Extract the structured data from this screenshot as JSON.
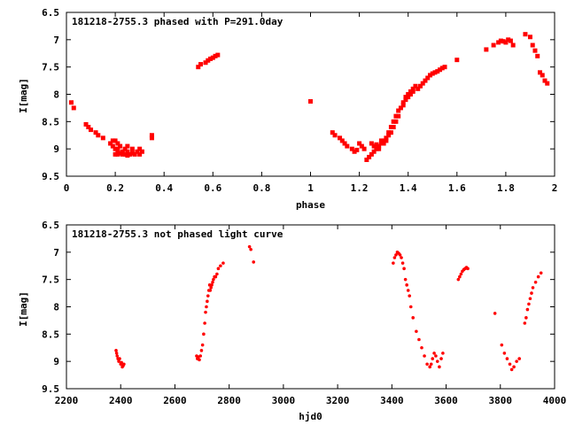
{
  "chart_data": [
    {
      "type": "scatter",
      "title": "181218-2755.3 phased with P=291.0day",
      "xlabel": "phase",
      "ylabel": "I[mag]",
      "xlim": [
        0,
        2
      ],
      "ylim": [
        9.5,
        6.5
      ],
      "y_inverted": true,
      "xticks": [
        "0",
        "0.2",
        "0.4",
        "0.6",
        "0.8",
        "1",
        "1.2",
        "1.4",
        "1.6",
        "1.8",
        "2"
      ],
      "yticks": [
        "6.5",
        "7",
        "7.5",
        "8",
        "8.5",
        "9",
        "9.5"
      ],
      "marker": "filled-square",
      "color": "#ff0000",
      "grid": false,
      "x": [
        0.02,
        0.03,
        0.08,
        0.09,
        0.1,
        0.12,
        0.13,
        0.15,
        0.18,
        0.19,
        0.19,
        0.2,
        0.2,
        0.2,
        0.21,
        0.21,
        0.21,
        0.21,
        0.22,
        0.22,
        0.23,
        0.23,
        0.24,
        0.24,
        0.25,
        0.25,
        0.25,
        0.26,
        0.27,
        0.27,
        0.28,
        0.29,
        0.3,
        0.3,
        0.31,
        0.35,
        0.35,
        0.54,
        0.55,
        0.57,
        0.58,
        0.59,
        0.6,
        0.61,
        0.62,
        1.0,
        1.09,
        1.1,
        1.12,
        1.13,
        1.14,
        1.15,
        1.17,
        1.18,
        1.19,
        1.2,
        1.21,
        1.22,
        1.23,
        1.24,
        1.25,
        1.25,
        1.26,
        1.26,
        1.27,
        1.27,
        1.28,
        1.28,
        1.29,
        1.29,
        1.3,
        1.3,
        1.31,
        1.31,
        1.32,
        1.32,
        1.33,
        1.33,
        1.34,
        1.34,
        1.35,
        1.35,
        1.36,
        1.36,
        1.37,
        1.38,
        1.38,
        1.39,
        1.39,
        1.4,
        1.4,
        1.41,
        1.41,
        1.42,
        1.42,
        1.43,
        1.44,
        1.45,
        1.46,
        1.47,
        1.48,
        1.49,
        1.5,
        1.51,
        1.52,
        1.53,
        1.54,
        1.55,
        1.6,
        1.72,
        1.75,
        1.77,
        1.78,
        1.79,
        1.8,
        1.81,
        1.82,
        1.83,
        1.88,
        1.9,
        1.91,
        1.92,
        1.93,
        1.94,
        1.95,
        1.96,
        1.97
      ],
      "y": [
        8.15,
        8.25,
        8.55,
        8.6,
        8.65,
        8.7,
        8.75,
        8.8,
        8.9,
        8.85,
        8.95,
        8.85,
        9.0,
        9.1,
        8.9,
        9.0,
        9.1,
        9.05,
        8.95,
        9.08,
        9.05,
        9.1,
        9.0,
        9.1,
        8.95,
        9.05,
        9.12,
        9.1,
        9.0,
        9.08,
        9.1,
        9.05,
        9.0,
        9.1,
        9.05,
        8.8,
        8.75,
        7.5,
        7.45,
        7.42,
        7.38,
        7.35,
        7.33,
        7.3,
        7.28,
        8.13,
        8.7,
        8.75,
        8.8,
        8.85,
        8.9,
        8.95,
        9.0,
        9.05,
        9.02,
        8.9,
        8.95,
        9.0,
        9.2,
        9.15,
        9.1,
        8.9,
        9.05,
        8.95,
        9.0,
        8.92,
        8.95,
        9.0,
        8.85,
        8.9,
        8.85,
        8.9,
        8.8,
        8.85,
        8.7,
        8.75,
        8.6,
        8.7,
        8.5,
        8.6,
        8.4,
        8.5,
        8.3,
        8.4,
        8.25,
        8.15,
        8.2,
        8.05,
        8.1,
        8.05,
        8.0,
        8.0,
        7.95,
        7.9,
        7.95,
        7.85,
        7.9,
        7.85,
        7.8,
        7.75,
        7.7,
        7.65,
        7.62,
        7.6,
        7.58,
        7.55,
        7.52,
        7.5,
        7.37,
        7.18,
        7.1,
        7.05,
        7.02,
        7.03,
        7.05,
        7.0,
        7.02,
        7.1,
        6.9,
        6.95,
        7.1,
        7.2,
        7.3,
        7.6,
        7.65,
        7.75,
        7.8
      ]
    },
    {
      "type": "scatter",
      "title": "181218-2755.3 not phased light curve",
      "xlabel": "hjd0",
      "ylabel": "I[mag]",
      "xlim": [
        2200,
        4000
      ],
      "ylim": [
        9.5,
        6.5
      ],
      "y_inverted": true,
      "xticks": [
        "2200",
        "2400",
        "2600",
        "2800",
        "3000",
        "3200",
        "3400",
        "3600",
        "3800",
        "4000"
      ],
      "yticks": [
        "6.5",
        "7",
        "7.5",
        "8",
        "8.5",
        "9",
        "9.5"
      ],
      "marker": "small-filled-circle",
      "color": "#ff0000",
      "grid": false,
      "x": [
        2383,
        2385,
        2387,
        2390,
        2393,
        2396,
        2400,
        2403,
        2406,
        2409,
        2412,
        2680,
        2683,
        2686,
        2690,
        2694,
        2698,
        2702,
        2706,
        2710,
        2713,
        2716,
        2719,
        2722,
        2725,
        2728,
        2730,
        2733,
        2736,
        2739,
        2742,
        2746,
        2750,
        2755,
        2760,
        2768,
        2778,
        2875,
        2880,
        2890,
        3405,
        3410,
        3415,
        3420,
        3425,
        3430,
        3435,
        3440,
        3445,
        3450,
        3455,
        3460,
        3465,
        3470,
        3478,
        3490,
        3500,
        3510,
        3520,
        3530,
        3540,
        3545,
        3550,
        3556,
        3562,
        3568,
        3575,
        3582,
        3588,
        3645,
        3650,
        3655,
        3660,
        3665,
        3670,
        3675,
        3680,
        3780,
        3805,
        3815,
        3825,
        3835,
        3842,
        3850,
        3860,
        3870,
        3890,
        3895,
        3900,
        3905,
        3910,
        3915,
        3920,
        3930,
        3940,
        3950
      ],
      "y": [
        8.8,
        8.85,
        8.9,
        8.95,
        9.0,
        8.95,
        9.05,
        9.02,
        9.1,
        9.08,
        9.05,
        8.9,
        8.95,
        8.92,
        8.97,
        8.9,
        8.8,
        8.7,
        8.5,
        8.3,
        8.1,
        8.0,
        7.9,
        7.8,
        7.7,
        7.6,
        7.7,
        7.65,
        7.6,
        7.55,
        7.5,
        7.45,
        7.45,
        7.4,
        7.3,
        7.25,
        7.2,
        6.9,
        6.95,
        7.18,
        7.2,
        7.1,
        7.05,
        7.0,
        7.02,
        7.05,
        7.1,
        7.2,
        7.3,
        7.5,
        7.6,
        7.7,
        7.8,
        8.0,
        8.2,
        8.45,
        8.6,
        8.75,
        8.9,
        9.05,
        9.1,
        9.05,
        8.95,
        8.85,
        8.9,
        9.0,
        9.1,
        8.95,
        8.85,
        7.5,
        7.45,
        7.4,
        7.35,
        7.32,
        7.3,
        7.28,
        7.3,
        8.12,
        8.7,
        8.85,
        8.95,
        9.05,
        9.15,
        9.1,
        9.0,
        8.95,
        8.3,
        8.2,
        8.05,
        7.95,
        7.85,
        7.75,
        7.65,
        7.55,
        7.45,
        7.38
      ]
    }
  ]
}
